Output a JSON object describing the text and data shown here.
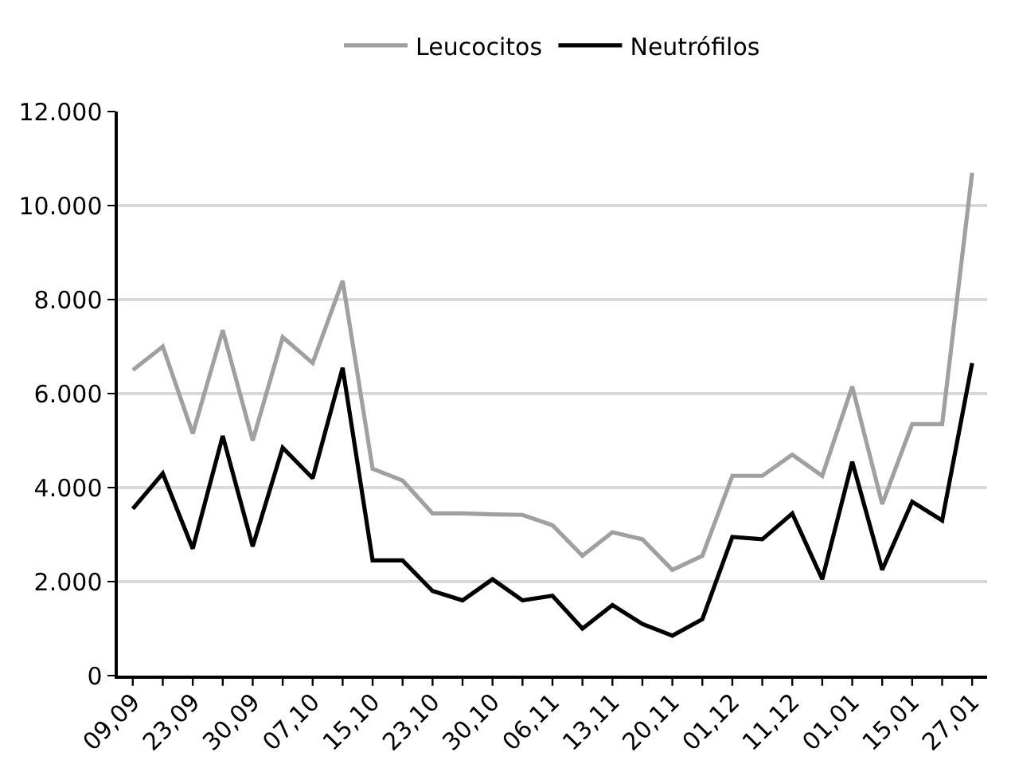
{
  "chart_data": {
    "type": "line",
    "categories": [
      "09,09",
      null,
      "23,09",
      null,
      "30,09",
      null,
      "07,10",
      null,
      "15,10",
      null,
      "23,10",
      null,
      "30,10",
      null,
      "06,11",
      null,
      "13,11",
      null,
      "20,11",
      null,
      "01,12",
      null,
      "11,12",
      null,
      "01,01",
      null,
      "15,01",
      null,
      "27,01"
    ],
    "series": [
      {
        "name": "Leucocitos",
        "color": "#a0a0a0",
        "values": [
          6500,
          7000,
          5150,
          7350,
          5000,
          7200,
          6650,
          8400,
          4400,
          4150,
          3450,
          3450,
          3430,
          3420,
          3200,
          2550,
          3050,
          2900,
          2250,
          2550,
          4250,
          4250,
          4700,
          4250,
          6150,
          3650,
          5350,
          5350,
          10700
        ]
      },
      {
        "name": "Neutrófilos",
        "color": "#000000",
        "values": [
          3550,
          4300,
          2700,
          5100,
          2750,
          4850,
          4200,
          6550,
          2450,
          2450,
          1800,
          1600,
          2050,
          1600,
          1700,
          1000,
          1500,
          1100,
          850,
          1200,
          2950,
          2900,
          3450,
          2050,
          4550,
          2250,
          3700,
          3300,
          6650
        ]
      }
    ],
    "ylim": [
      0,
      12000
    ],
    "yticks": [
      {
        "value": 0,
        "label": "0"
      },
      {
        "value": 2000,
        "label": "2.000"
      },
      {
        "value": 4000,
        "label": "4.000"
      },
      {
        "value": 6000,
        "label": "6.000"
      },
      {
        "value": 8000,
        "label": "8.000"
      },
      {
        "value": 10000,
        "label": "10.000"
      },
      {
        "value": 12000,
        "label": "12.000"
      }
    ],
    "grid": "y",
    "legend": "top",
    "marker": "none",
    "line_style": "solid"
  }
}
